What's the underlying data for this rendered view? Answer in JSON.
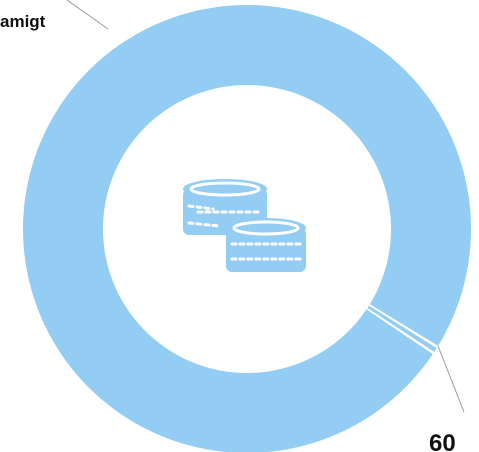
{
  "colors": {
    "slice": "#93cdf3",
    "leader": "#9a9a9a",
    "icon": "#93cdf3",
    "background": "#ffffff"
  },
  "center_icon": "coins-stack-icon",
  "chart_data": {
    "type": "pie",
    "donut": true,
    "slices": [
      {
        "label": "amigt",
        "value": 0.5
      },
      {
        "label": "60",
        "value": 99.5
      }
    ]
  }
}
